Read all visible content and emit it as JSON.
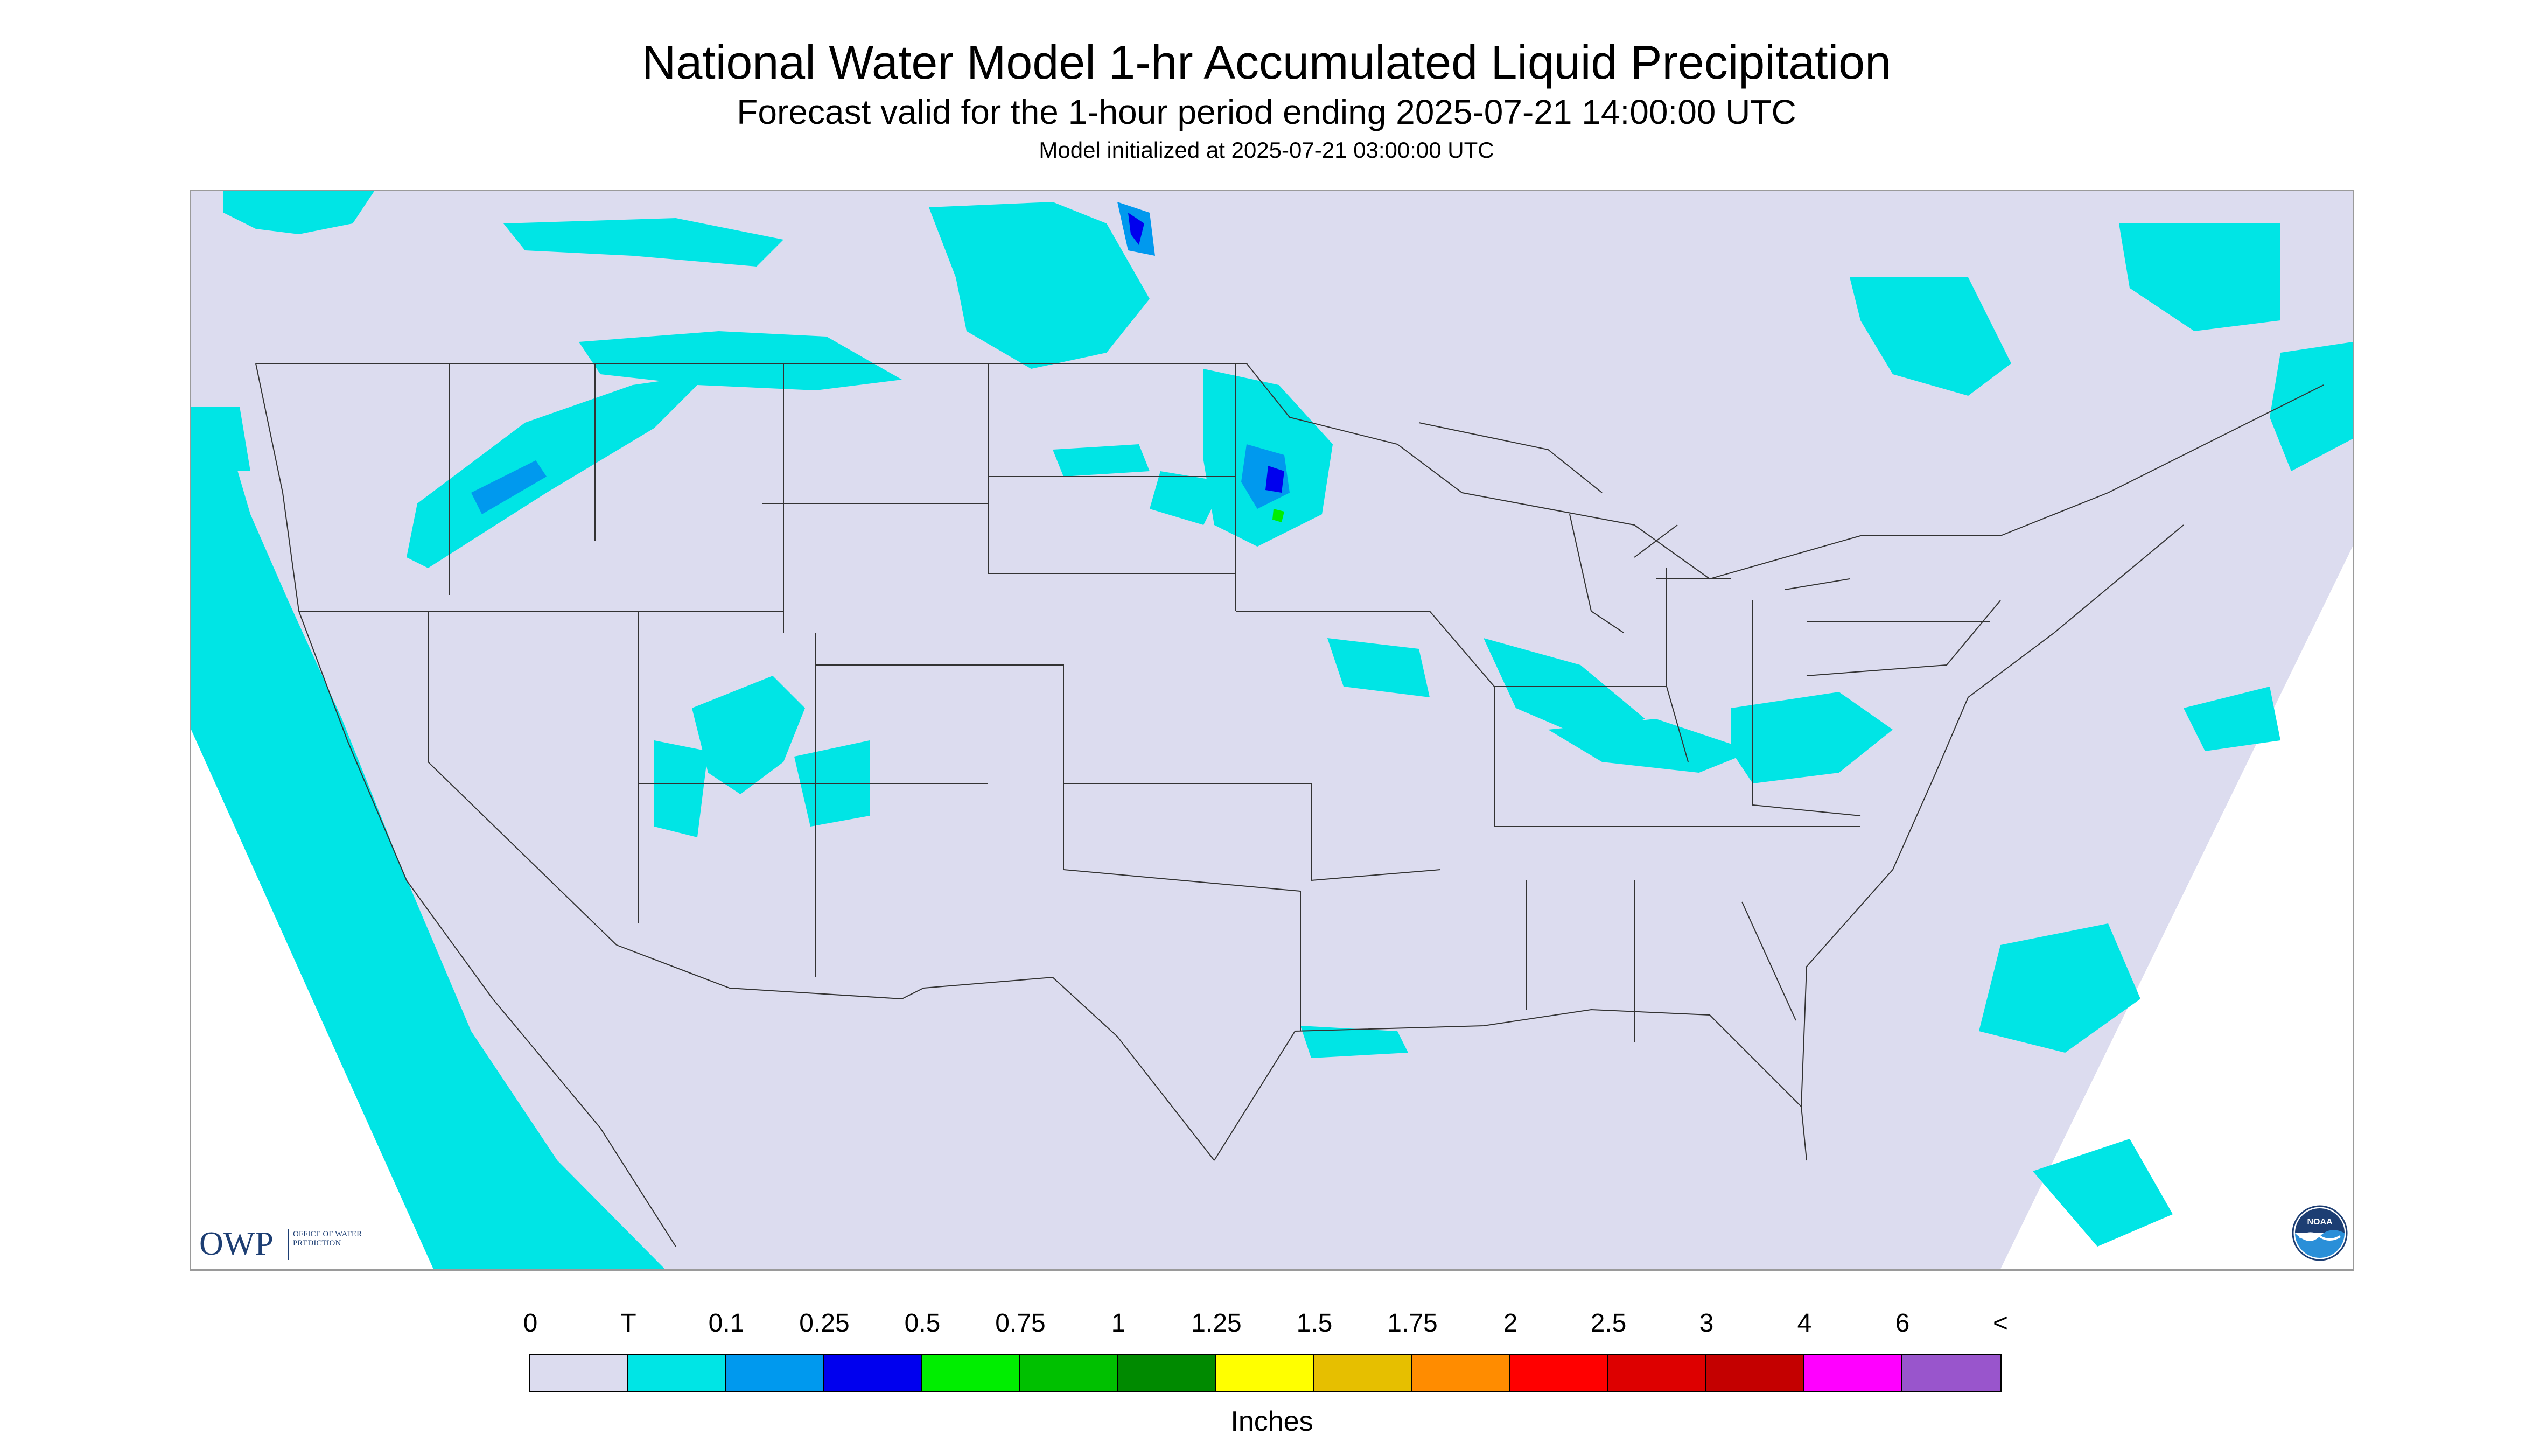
{
  "header": {
    "title": "National Water Model 1-hr Accumulated Liquid Precipitation",
    "subtitle": "Forecast valid for the 1-hour period ending 2025-07-21 14:00:00 UTC",
    "init_line": "Model initialized at 2025-07-21 03:00:00 UTC"
  },
  "map": {
    "region": "CONUS",
    "background_color": "#dcdcef",
    "outside_color": "#ffffff",
    "boundary_color": "#333333",
    "precip_colors": {
      "trace": "#00e5e5",
      "light": "#0099ee",
      "moderate": "#0000ee",
      "heavy": "#00ee00"
    }
  },
  "logos": {
    "owp_abbr": "OWP",
    "owp_full": "Office of Water Prediction",
    "noaa": "NOAA"
  },
  "legend": {
    "units": "Inches",
    "tick_labels": [
      "0",
      "T",
      "0.1",
      "0.25",
      "0.5",
      "0.75",
      "1",
      "1.25",
      "1.5",
      "1.75",
      "2",
      "2.5",
      "3",
      "4",
      "6",
      "<"
    ],
    "colors": [
      "#dcdcef",
      "#00e5e5",
      "#0099ee",
      "#0000ee",
      "#00ee00",
      "#00c000",
      "#008a00",
      "#ffff00",
      "#e6bf00",
      "#ff8c00",
      "#ff0000",
      "#dd0000",
      "#c40000",
      "#ff00ff",
      "#9955cc"
    ]
  }
}
